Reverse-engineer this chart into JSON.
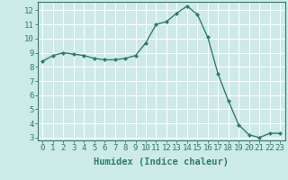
{
  "x": [
    0,
    1,
    2,
    3,
    4,
    5,
    6,
    7,
    8,
    9,
    10,
    11,
    12,
    13,
    14,
    15,
    16,
    17,
    18,
    19,
    20,
    21,
    22,
    23
  ],
  "y": [
    8.4,
    8.8,
    9.0,
    8.9,
    8.8,
    8.6,
    8.5,
    8.5,
    8.6,
    8.8,
    9.7,
    11.0,
    11.2,
    11.8,
    12.3,
    11.7,
    10.1,
    7.5,
    5.6,
    3.9,
    3.2,
    3.0,
    3.3,
    3.3
  ],
  "xlabel": "Humidex (Indice chaleur)",
  "ylim": [
    2.8,
    12.6
  ],
  "xlim": [
    -0.5,
    23.5
  ],
  "yticks": [
    3,
    4,
    5,
    6,
    7,
    8,
    9,
    10,
    11,
    12
  ],
  "xtick_labels": [
    "0",
    "1",
    "2",
    "3",
    "4",
    "5",
    "6",
    "7",
    "8",
    "9",
    "10",
    "11",
    "12",
    "13",
    "14",
    "15",
    "16",
    "17",
    "18",
    "19",
    "20",
    "21",
    "22",
    "23"
  ],
  "line_color": "#2e7d6e",
  "marker": "D",
  "marker_size": 2.0,
  "bg_color": "#cceae7",
  "grid_color": "#ffffff",
  "axis_color": "#2e7d6e",
  "tick_color": "#2e7d6e",
  "label_color": "#2e7d6e",
  "xlabel_fontsize": 7.5,
  "tick_fontsize": 6.5
}
